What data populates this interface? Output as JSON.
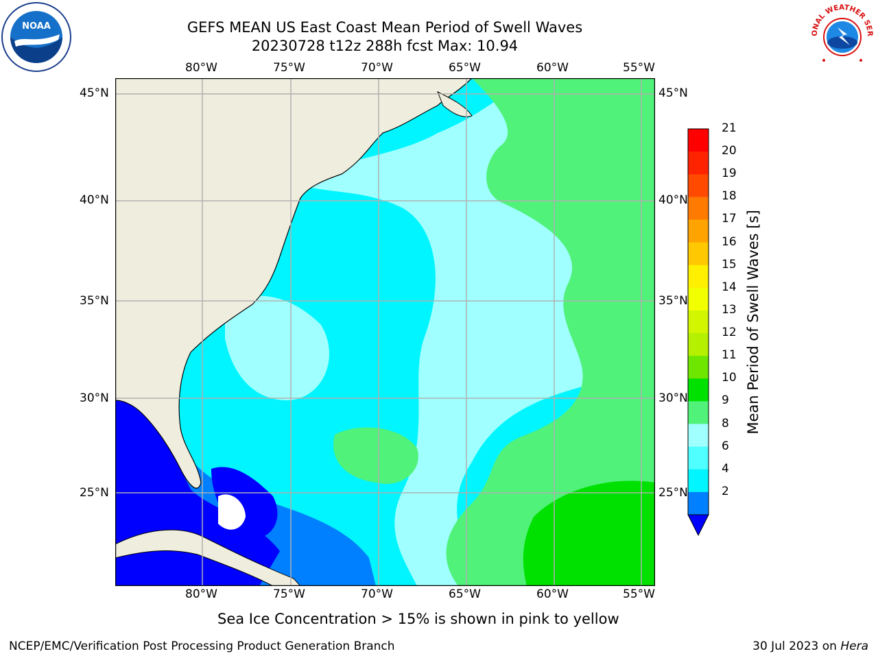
{
  "title": {
    "line1": "GEFS MEAN US East Coast Mean Period of Swell Waves",
    "line2": "20230728 t12z 288h fcst   Max: 10.94"
  },
  "logos": {
    "left": "NOAA",
    "right": "NATIONAL WEATHER SERVICE"
  },
  "map": {
    "lon_ticks": [
      "80°W",
      "75°W",
      "70°W",
      "65°W",
      "60°W",
      "55°W"
    ],
    "lat_ticks": [
      "45°N",
      "40°N",
      "35°N",
      "30°N",
      "25°N"
    ],
    "land_color": "#efedde",
    "ocean_regions": [
      "swell-period-field"
    ]
  },
  "colorbar": {
    "label": "Mean Period of Swell Waves [s]",
    "ticks": [
      "21",
      "20",
      "19",
      "18",
      "17",
      "16",
      "15",
      "14",
      "13",
      "12",
      "11",
      "10",
      "9",
      "8",
      "6",
      "4",
      "2"
    ],
    "levels": [
      {
        "label": "20-21",
        "color": "#ff0000"
      },
      {
        "label": "19-20",
        "color": "#ff2300"
      },
      {
        "label": "18-19",
        "color": "#ff4a00"
      },
      {
        "label": "17-18",
        "color": "#ff7a00"
      },
      {
        "label": "16-17",
        "color": "#ffa300"
      },
      {
        "label": "15-16",
        "color": "#ffc800"
      },
      {
        "label": "14-15",
        "color": "#ffef00"
      },
      {
        "label": "13-14",
        "color": "#f2ff00"
      },
      {
        "label": "12-13",
        "color": "#d2f500"
      },
      {
        "label": "11-12",
        "color": "#b4f000"
      },
      {
        "label": "10-11",
        "color": "#6ee600"
      },
      {
        "label": "9-10",
        "color": "#00e100"
      },
      {
        "label": "8-9",
        "color": "#50f27a"
      },
      {
        "label": "6-8",
        "color": "#a0ffff"
      },
      {
        "label": "4-6",
        "color": "#50ffff"
      },
      {
        "label": "2-4",
        "color": "#00f5ff"
      },
      {
        "label": "<2",
        "color": "#0080ff"
      },
      {
        "label": "under",
        "color": "#0000ff"
      }
    ]
  },
  "caption": "Sea Ice Concentration > 15% is shown in pink to yellow",
  "footer": {
    "left": "NCEP/EMC/Verification Post Processing Product Generation Branch",
    "right_date": "30 Jul 2023 on ",
    "right_host": "Hera"
  }
}
